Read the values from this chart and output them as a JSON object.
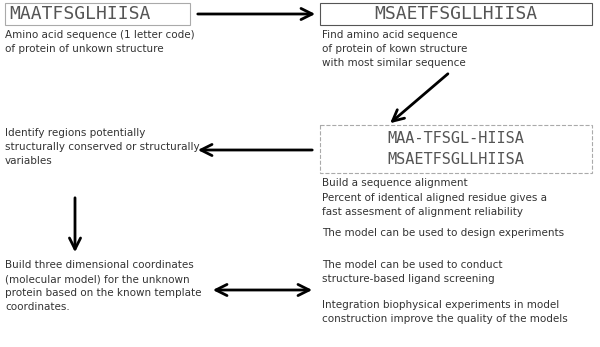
{
  "bg_color": "#ffffff",
  "seq1": "MAATFSGLHIISA",
  "seq2": "MSAETFSGLLHIISA",
  "seq_align1": "MAA-TFSGL-HIISA",
  "seq_align2": "MSAETFSGLLHIISA",
  "text_left1": "Amino acid sequence (1 letter code)\nof protein of unkown structure",
  "text_right1": "Find amino acid sequence\nof protein of kown structure\nwith most similar sequence",
  "text_left2": "Identify regions potentially\nstructurally conserved or structurally\nvariables",
  "text_mid2": "Build a sequence alignment",
  "text_mid3": "Percent of identical aligned residue gives a\nfast assesment of alignment reliability",
  "text_left3": "Build three dimensional coordinates\n(molecular model) for the unknown\nprotein based on the known template\ncoordinates.",
  "text_right3a": "The model can be used to design experiments",
  "text_right3b": "The model can be used to conduct\nstructure-based ligand screening",
  "text_right3c": "Integration biophysical experiments in model\nconstruction improve the quality of the models",
  "color_seq": "#555555",
  "color_text": "#333333",
  "fontsize_seq": 13,
  "fontsize_small": 7.5
}
